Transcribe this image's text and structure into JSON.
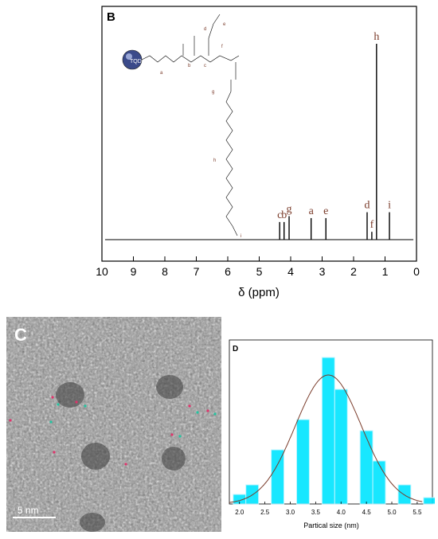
{
  "panel_b": {
    "label": "B",
    "chart_data": {
      "type": "line",
      "xlabel": "δ (ppm)",
      "xlim": [
        10,
        0
      ],
      "x_ticks": [
        "10",
        "9",
        "8",
        "7",
        "6",
        "5",
        "4",
        "3",
        "2",
        "1",
        "0"
      ],
      "x_tick_values": [
        10,
        9,
        8,
        7,
        6,
        5,
        4,
        3,
        2,
        1,
        0
      ],
      "peaks": [
        {
          "label": "c",
          "ppm": 4.35,
          "height": 0.09
        },
        {
          "label": "b",
          "ppm": 4.21,
          "height": 0.09
        },
        {
          "label": "g",
          "ppm": 4.05,
          "height": 0.12
        },
        {
          "label": "a",
          "ppm": 3.35,
          "height": 0.11
        },
        {
          "label": "e",
          "ppm": 2.88,
          "height": 0.11
        },
        {
          "label": "d",
          "ppm": 1.57,
          "height": 0.14
        },
        {
          "label": "f",
          "ppm": 1.42,
          "height": 0.04
        },
        {
          "label": "h",
          "ppm": 1.27,
          "height": 1.0
        },
        {
          "label": "i",
          "ppm": 0.86,
          "height": 0.14
        }
      ]
    },
    "structure_labels": {
      "core": "TQD",
      "letters": [
        "a",
        "b",
        "c",
        "d",
        "e",
        "f",
        "g",
        "h",
        "i"
      ]
    }
  },
  "panel_c": {
    "label": "C",
    "scale_bar": "5 nm"
  },
  "panel_d": {
    "label": "D",
    "chart_data": {
      "type": "bar",
      "xlabel": "Partical size (nm)",
      "xlim": [
        1.8,
        5.8
      ],
      "ylim": [
        0,
        1
      ],
      "x_ticks": [
        "2.0",
        "2.5",
        "3.0",
        "3.5",
        "4.0",
        "4.5",
        "5.0",
        "5.5"
      ],
      "x_tick_values": [
        2.0,
        2.5,
        3.0,
        3.5,
        4.0,
        4.5,
        5.0,
        5.5
      ],
      "bins": [
        {
          "center": 2.0,
          "value": 0.06
        },
        {
          "center": 2.25,
          "value": 0.12
        },
        {
          "center": 2.75,
          "value": 0.34
        },
        {
          "center": 3.25,
          "value": 0.53
        },
        {
          "center": 3.75,
          "value": 0.92
        },
        {
          "center": 4.0,
          "value": 0.72
        },
        {
          "center": 4.5,
          "value": 0.46
        },
        {
          "center": 4.75,
          "value": 0.27
        },
        {
          "center": 5.25,
          "value": 0.12
        },
        {
          "center": 5.75,
          "value": 0.04
        }
      ],
      "fit": {
        "type": "gaussian",
        "mean": 3.75,
        "sd": 0.65,
        "peak": 0.81
      },
      "bar_color": "#00e5ff",
      "fit_color": "#7a3b2a"
    }
  }
}
